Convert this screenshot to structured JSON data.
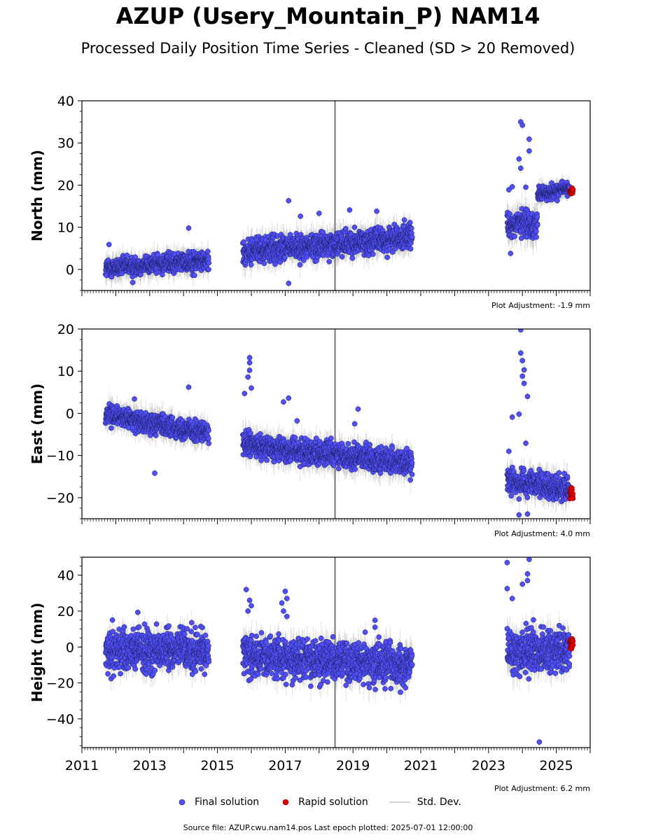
{
  "title": "AZUP (Usery_Mountain_P) NAM14",
  "subtitle": "Processed Daily Position Time Series - Cleaned (SD > 20 Removed)",
  "source_note": "Source file: AZUP.cwu.nam14.pos  Last epoch plotted: 2025-07-01 12:00:00",
  "colors": {
    "final": "#4f4ff5",
    "rapid": "#e00000",
    "stddev": "#b4b4b4",
    "edge": "#1a1a5a"
  },
  "legend": {
    "final": "Final solution",
    "rapid": "Rapid solution",
    "stddev": "Std. Dev."
  },
  "chart_data": [
    {
      "type": "scatter",
      "ylabel": "North (mm)",
      "ylim": [
        -5,
        40
      ],
      "yticks": [
        0,
        10,
        20,
        30,
        40
      ],
      "yminor_step": 2.5,
      "xlim": [
        2011,
        2026
      ],
      "xticks": [
        2011,
        2013,
        2015,
        2017,
        2019,
        2021,
        2023,
        2025
      ],
      "show_xtick_labels": false,
      "adjustment": "Plot Adjustment: -1.9 mm",
      "segments": [
        {
          "start": 2011.7,
          "end": 2014.75,
          "mean_start": 0.3,
          "mean_end": 2.2,
          "noise": 1.1,
          "sd": 2.2
        },
        {
          "start": 2015.75,
          "end": 2020.75,
          "mean_start": 4.2,
          "mean_end": 7.6,
          "noise": 1.4,
          "sd": 2.5
        },
        {
          "start": 2023.55,
          "end": 2024.45,
          "mean_start": 10.7,
          "mean_end": 11.0,
          "noise": 1.6,
          "sd": 3.0
        },
        {
          "start": 2024.45,
          "end": 2025.4,
          "mean_start": 17.8,
          "mean_end": 19.2,
          "noise": 0.8,
          "sd": 1.8
        }
      ],
      "outliers": [
        [
          2011.8,
          5.9
        ],
        [
          2012.5,
          -3.1
        ],
        [
          2014.15,
          9.8
        ],
        [
          2017.1,
          16.3
        ],
        [
          2017.1,
          -3.3
        ],
        [
          2017.45,
          12.6
        ],
        [
          2018.0,
          13.3
        ],
        [
          2018.9,
          14.1
        ],
        [
          2019.7,
          13.8
        ],
        [
          2023.6,
          18.9
        ],
        [
          2023.65,
          3.8
        ],
        [
          2023.9,
          26.2
        ],
        [
          2023.95,
          35.0
        ],
        [
          2024.0,
          34.2
        ],
        [
          2023.95,
          24.0
        ],
        [
          2024.2,
          30.9
        ],
        [
          2024.2,
          28.1
        ],
        [
          2024.1,
          19.5
        ],
        [
          2023.7,
          19.6
        ]
      ],
      "rapid": {
        "start": 2025.4,
        "end": 2025.5,
        "mean": 18.5,
        "noise": 0.5
      }
    },
    {
      "type": "scatter",
      "ylabel": "East (mm)",
      "ylim": [
        -25,
        20
      ],
      "yticks": [
        -20,
        -10,
        0,
        10,
        20
      ],
      "yminor_step": 2.5,
      "xlim": [
        2011,
        2026
      ],
      "xticks": [
        2011,
        2013,
        2015,
        2017,
        2019,
        2021,
        2023,
        2025
      ],
      "show_xtick_labels": false,
      "adjustment": "Plot Adjustment: 4.0 mm",
      "segments": [
        {
          "start": 2011.7,
          "end": 2014.75,
          "mean_start": -0.3,
          "mean_end": -4.8,
          "noise": 1.1,
          "sd": 2.3
        },
        {
          "start": 2015.75,
          "end": 2020.75,
          "mean_start": -7.5,
          "mean_end": -11.8,
          "noise": 1.4,
          "sd": 2.6
        },
        {
          "start": 2023.55,
          "end": 2025.4,
          "mean_start": -15.8,
          "mean_end": -18.3,
          "noise": 1.4,
          "sd": 2.6
        }
      ],
      "outliers": [
        [
          2012.55,
          3.4
        ],
        [
          2013.15,
          -14.2
        ],
        [
          2014.15,
          6.2
        ],
        [
          2015.8,
          4.7
        ],
        [
          2015.95,
          13.2
        ],
        [
          2015.95,
          12.0
        ],
        [
          2015.95,
          10.2
        ],
        [
          2015.9,
          8.6
        ],
        [
          2016.0,
          6.0
        ],
        [
          2017.1,
          3.6
        ],
        [
          2016.95,
          2.7
        ],
        [
          2017.35,
          -1.8
        ],
        [
          2019.15,
          1.0
        ],
        [
          2019.05,
          -2.5
        ],
        [
          2023.95,
          19.8
        ],
        [
          2023.95,
          14.3
        ],
        [
          2024.0,
          12.5
        ],
        [
          2024.05,
          10.3
        ],
        [
          2024.0,
          8.8
        ],
        [
          2024.05,
          7.1
        ],
        [
          2024.15,
          4.0
        ],
        [
          2023.9,
          -0.2
        ],
        [
          2024.1,
          -7.1
        ],
        [
          2023.6,
          -9.0
        ],
        [
          2023.9,
          -24.1
        ],
        [
          2024.15,
          -23.9
        ],
        [
          2023.7,
          -0.9
        ]
      ],
      "rapid": {
        "start": 2025.4,
        "end": 2025.5,
        "mean": -19.0,
        "noise": 0.6
      }
    },
    {
      "type": "scatter",
      "ylabel": "Height (mm)",
      "ylim": [
        -56,
        50
      ],
      "yticks": [
        -40,
        -20,
        0,
        20,
        40
      ],
      "yminor_step": 5,
      "xlim": [
        2011,
        2026
      ],
      "xticks": [
        2011,
        2013,
        2015,
        2017,
        2019,
        2021,
        2023,
        2025
      ],
      "show_xtick_labels": true,
      "adjustment": "Plot Adjustment: 6.2 mm",
      "segments": [
        {
          "start": 2011.7,
          "end": 2014.75,
          "mean_start": -2.0,
          "mean_end": -1.5,
          "noise": 5.5,
          "sd": 6.0
        },
        {
          "start": 2015.75,
          "end": 2020.75,
          "mean_start": -4.0,
          "mean_end": -10.0,
          "noise": 5.5,
          "sd": 6.5
        },
        {
          "start": 2023.55,
          "end": 2025.4,
          "mean_start": -3.0,
          "mean_end": -2.0,
          "noise": 6.0,
          "sd": 7.0
        }
      ],
      "outliers": [
        [
          2011.9,
          15.0
        ],
        [
          2012.65,
          19.3
        ],
        [
          2015.85,
          32.0
        ],
        [
          2015.9,
          20.0
        ],
        [
          2015.95,
          26.0
        ],
        [
          2016.0,
          23.0
        ],
        [
          2017.0,
          31.0
        ],
        [
          2017.05,
          27.0
        ],
        [
          2016.9,
          24.5
        ],
        [
          2016.95,
          20.0
        ],
        [
          2017.05,
          17.0
        ],
        [
          2023.55,
          47.0
        ],
        [
          2023.55,
          32.5
        ],
        [
          2023.7,
          27.0
        ],
        [
          2024.0,
          35.0
        ],
        [
          2024.15,
          40.7
        ],
        [
          2024.2,
          48.8
        ],
        [
          2024.15,
          37.0
        ],
        [
          2024.5,
          -52.9
        ],
        [
          2019.65,
          14.9
        ],
        [
          2019.65,
          11.0
        ]
      ],
      "rapid": {
        "start": 2025.4,
        "end": 2025.5,
        "mean": 2.0,
        "noise": 2.0
      }
    }
  ]
}
